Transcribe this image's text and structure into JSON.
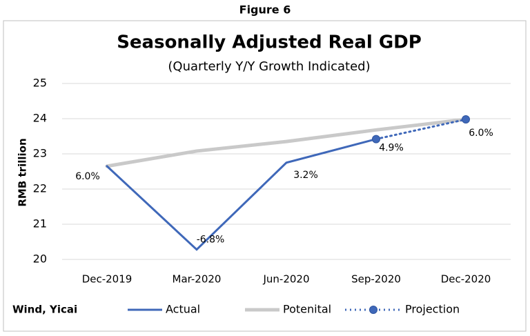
{
  "figure_label": "Figure 6",
  "chart_data": {
    "type": "line",
    "title": "Seasonally Adjusted Real GDP",
    "subtitle": "(Quarterly Y/Y Growth Indicated)",
    "y_label": "RMB trillion",
    "source": "Wind, Yicai",
    "categories": [
      "Dec-2019",
      "Mar-2020",
      "Jun-2020",
      "Sep-2020",
      "Dec-2020"
    ],
    "series": [
      {
        "name": "Actual",
        "color": "#3f68b9",
        "style": "solid",
        "markers": false,
        "values": [
          22.65,
          20.28,
          22.75,
          23.42,
          null
        ]
      },
      {
        "name": "Potenital",
        "color": "#c9c9c9",
        "style": "solid",
        "markers": false,
        "values": [
          22.65,
          23.08,
          23.35,
          23.68,
          23.98
        ]
      },
      {
        "name": "Projection",
        "color": "#3f68b9",
        "style": "dotted",
        "markers": true,
        "values": [
          null,
          null,
          null,
          23.42,
          23.98
        ]
      }
    ],
    "annotations": [
      "6.0%",
      "-6.8%",
      "3.2%",
      "4.9%",
      "6.0%"
    ],
    "ylim": [
      20,
      25
    ],
    "yticks": [
      20,
      21,
      22,
      23,
      24,
      25
    ],
    "grid": true
  }
}
